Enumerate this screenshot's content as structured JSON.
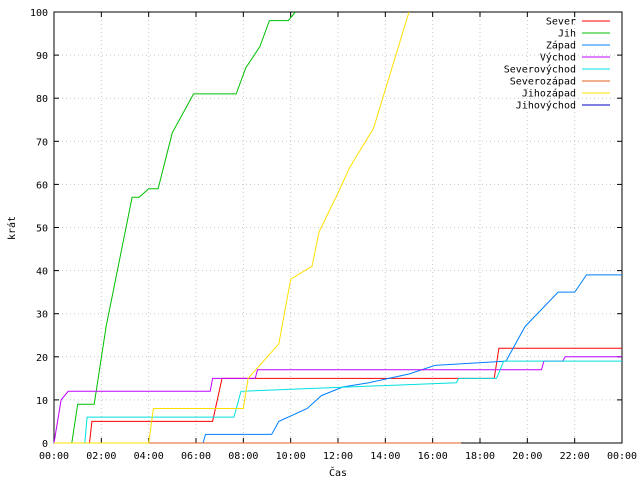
{
  "chart_data": {
    "type": "line",
    "xlabel": "Čas",
    "ylabel": "krát",
    "xlim": [
      0,
      24
    ],
    "ylim": [
      0,
      100
    ],
    "x_ticks": [
      0,
      2,
      4,
      6,
      8,
      10,
      12,
      14,
      16,
      18,
      20,
      22,
      24
    ],
    "x_tick_labels": [
      "00:00",
      "02:00",
      "04:00",
      "06:00",
      "08:00",
      "10:00",
      "12:00",
      "14:00",
      "16:00",
      "18:00",
      "20:00",
      "22:00",
      "00:00"
    ],
    "y_ticks": [
      0,
      10,
      20,
      30,
      40,
      50,
      60,
      70,
      80,
      90,
      100
    ],
    "y_tick_labels": [
      "0",
      "10",
      "20",
      "30",
      "40",
      "50",
      "60",
      "70",
      "80",
      "90",
      "100"
    ],
    "legend_position": "top-right",
    "series": [
      {
        "name": "Sever",
        "color": "#ff0000",
        "x": [
          0,
          1.5,
          1.6,
          6.7,
          7.1,
          18.6,
          18.8,
          24
        ],
        "y": [
          0,
          0,
          5,
          5,
          15,
          15,
          22,
          22
        ]
      },
      {
        "name": "Jih",
        "color": "#00c000",
        "x": [
          0,
          0.75,
          1.0,
          1.7,
          2.2,
          3.3,
          3.6,
          4.0,
          4.4,
          5.0,
          5.9,
          6.0,
          7.7,
          8.1,
          8.7,
          9.1,
          9.9,
          10.2
        ],
        "y": [
          0,
          0,
          9,
          9,
          27,
          57,
          57,
          59,
          59,
          72,
          81,
          81,
          81,
          87,
          92,
          98,
          98,
          100
        ]
      },
      {
        "name": "Západ",
        "color": "#0080ff",
        "x": [
          0,
          6.3,
          6.4,
          9.2,
          9.5,
          10.7,
          11.3,
          12.2,
          13.3,
          15.0,
          16.1,
          19.1,
          19.9,
          21.3,
          22.0,
          22.5,
          24
        ],
        "y": [
          0,
          0,
          2,
          2,
          5,
          8,
          11,
          13,
          14,
          16,
          18,
          19,
          27,
          35,
          35,
          39,
          39
        ]
      },
      {
        "name": "Východ",
        "color": "#c000ff",
        "x": [
          0,
          0.3,
          0.6,
          6.6,
          6.7,
          8.5,
          8.6,
          20.6,
          20.7,
          21.5,
          21.6,
          24
        ],
        "y": [
          0,
          10,
          12,
          12,
          15,
          15,
          17,
          17,
          19,
          19,
          20,
          20
        ]
      },
      {
        "name": "Severovýchod",
        "color": "#00e0e0",
        "x": [
          0,
          1.3,
          1.4,
          7.6,
          7.9,
          17.0,
          17.1,
          18.7,
          19.0,
          24
        ],
        "y": [
          0,
          0,
          6,
          6,
          12,
          14,
          15,
          15,
          19,
          19
        ]
      },
      {
        "name": "Severozápad",
        "color": "#e06020",
        "x": [
          0,
          17.2
        ],
        "y": [
          0,
          0
        ]
      },
      {
        "name": "Jihozápad",
        "color": "#ffe000",
        "x": [
          0,
          4.0,
          4.2,
          8.0,
          8.2,
          9.5,
          10.0,
          10.9,
          11.2,
          12.0,
          12.5,
          13.5,
          15.0
        ],
        "y": [
          0,
          0,
          8,
          8,
          15,
          23,
          38,
          41,
          49,
          58,
          64,
          73,
          100
        ]
      },
      {
        "name": "Jihovýchod",
        "color": "#0000c0",
        "x": [],
        "y": []
      }
    ]
  }
}
